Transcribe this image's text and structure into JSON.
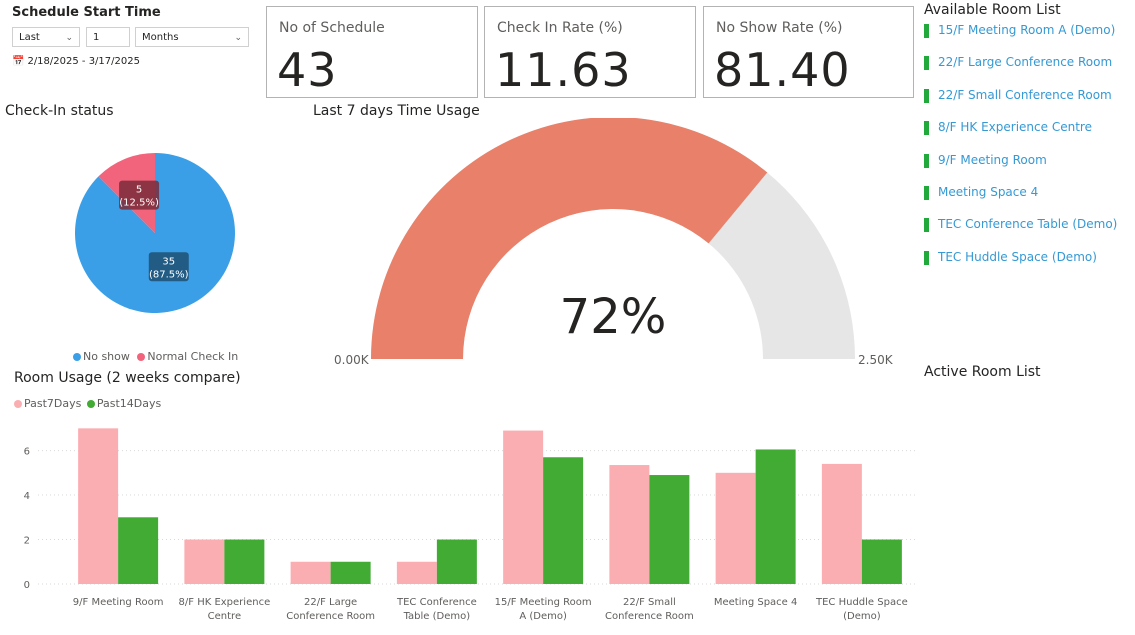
{
  "slicer": {
    "title": "Schedule Start Time",
    "mode": "Last",
    "count": "1",
    "unit": "Months",
    "date_range": "2/18/2025 - 3/17/2025"
  },
  "cards": [
    {
      "label": "No of Schedule",
      "value": "43"
    },
    {
      "label": "Check In Rate (%)",
      "value": "11.63"
    },
    {
      "label": "No Show Rate (%)",
      "value": "81.40"
    }
  ],
  "available_rooms": {
    "title": "Available Room List",
    "items": [
      "15/F Meeting Room A (Demo)",
      "22/F Large Conference Room",
      "22/F Small Conference Room",
      "8/F HK Experience Centre",
      "9/F Meeting Room",
      "Meeting Space 4",
      "TEC Conference Table (Demo)",
      "TEC Huddle Space (Demo)"
    ]
  },
  "active_rooms": {
    "title": "Active Room List"
  },
  "colors": {
    "no_show": "#3b9fe8",
    "normal_check_in": "#f2647c",
    "gauge_fill": "#e8806a",
    "gauge_track": "#e6e6e6",
    "past7": "#fbaeb2",
    "past14": "#42ab34",
    "room_marker": "#21a93b",
    "room_link": "#3599d4"
  },
  "chart_data": [
    {
      "type": "pie",
      "title": "Check-In status",
      "categories": [
        "No show",
        "Normal Check In"
      ],
      "values": [
        35,
        5
      ],
      "labels": [
        {
          "value": "35",
          "pct": "(87.5%)"
        },
        {
          "value": "5",
          "pct": "(12.5%)"
        }
      ],
      "legend": "bottom"
    },
    {
      "type": "gauge",
      "title": "Last 7 days Time Usage",
      "value_label": "72%",
      "fraction": 0.72,
      "min_label": "0.00K",
      "max_label": "2.50K"
    },
    {
      "type": "bar",
      "title": "Room Usage (2 weeks compare)",
      "categories": [
        [
          "9/F Meeting Room"
        ],
        [
          "8/F HK Experience",
          "Centre"
        ],
        [
          "22/F Large",
          "Conference Room"
        ],
        [
          "TEC Conference",
          "Table (Demo)"
        ],
        [
          "15/F Meeting Room",
          "A (Demo)"
        ],
        [
          "22/F Small",
          "Conference Room"
        ],
        [
          "Meeting Space 4"
        ],
        [
          "TEC Huddle Space",
          "(Demo)"
        ]
      ],
      "series": [
        {
          "name": "Past7Days",
          "values": [
            7,
            2,
            1,
            1,
            6.9,
            5.35,
            5,
            5.4
          ]
        },
        {
          "name": "Past14Days",
          "values": [
            3,
            2,
            1,
            2,
            5.7,
            4.9,
            6.05,
            2
          ]
        }
      ],
      "yticks": [
        "0",
        "2",
        "4",
        "6"
      ],
      "ylim": [
        0,
        7.6
      ],
      "legend": "top-left"
    }
  ]
}
